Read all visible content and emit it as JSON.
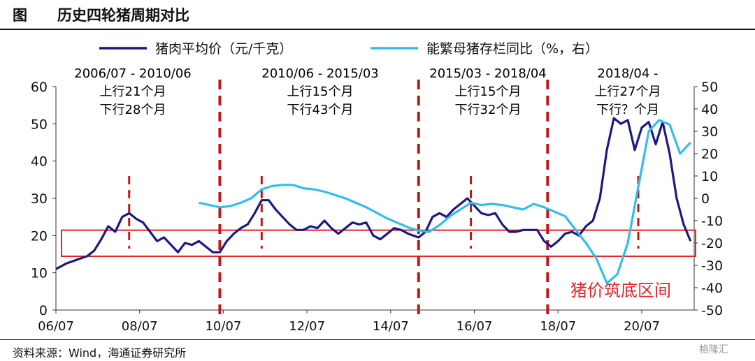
{
  "header": {
    "fig_label": "图",
    "title": "历史四轮猪周期对比"
  },
  "source": "资料来源：Wind，海通证券研究所",
  "watermark": "格隆汇",
  "chart_data": {
    "type": "line",
    "legend": [
      {
        "name": "猪肉平均价（元/千克）",
        "color": "#1a1a80"
      },
      {
        "name": "能繁母猪存栏同比（%，右）",
        "color": "#33bde8"
      }
    ],
    "x_ticks": [
      "06/07",
      "08/07",
      "10/07",
      "12/07",
      "14/07",
      "16/07",
      "18/07",
      "20/07"
    ],
    "y_left": {
      "ticks": [
        0,
        10,
        20,
        30,
        40,
        50,
        60
      ],
      "lim": [
        0,
        60
      ]
    },
    "y_right": {
      "ticks": [
        50,
        40,
        30,
        20,
        10,
        0,
        -10,
        -20,
        -30,
        -40,
        -50
      ],
      "lim": [
        -50,
        50
      ]
    },
    "cycles": [
      {
        "period": "2006/07 - 2010/06",
        "up": "上行21个月",
        "down": "下行28个月"
      },
      {
        "period": "2010/06 - 2015/03",
        "up": "上行15个月",
        "down": "下行43个月"
      },
      {
        "period": "2015/03 - 2018/04",
        "up": "上行15个月",
        "down": "下行32个月"
      },
      {
        "period": "2018/04 -",
        "up": "上行27个月",
        "down": "下行？个月"
      }
    ],
    "cycle_boundaries": [
      "2010-06",
      "2015-03",
      "2018-04"
    ],
    "peak_markers": [
      "2008-04",
      "2011-06",
      "2016-06",
      "2020-06"
    ],
    "bottom_band": {
      "label": "猪价筑底区间",
      "y_range": [
        15,
        22
      ]
    },
    "series": [
      {
        "name": "猪肉平均价（元/千克）",
        "axis": "left",
        "color": "#1a1a80",
        "points": [
          [
            "2006-07",
            11
          ],
          [
            "2006-10",
            12.5
          ],
          [
            "2007-01",
            13.5
          ],
          [
            "2007-04",
            14.5
          ],
          [
            "2007-06",
            16
          ],
          [
            "2007-08",
            19
          ],
          [
            "2007-10",
            22.5
          ],
          [
            "2007-12",
            21
          ],
          [
            "2008-02",
            25
          ],
          [
            "2008-04",
            26
          ],
          [
            "2008-06",
            24.5
          ],
          [
            "2008-08",
            23.5
          ],
          [
            "2008-10",
            21
          ],
          [
            "2008-12",
            18.5
          ],
          [
            "2009-02",
            19.5
          ],
          [
            "2009-04",
            17.5
          ],
          [
            "2009-06",
            15.5
          ],
          [
            "2009-08",
            18
          ],
          [
            "2009-10",
            17.5
          ],
          [
            "2009-12",
            18.5
          ],
          [
            "2010-02",
            17
          ],
          [
            "2010-04",
            15.5
          ],
          [
            "2010-06",
            15.5
          ],
          [
            "2010-08",
            18.5
          ],
          [
            "2010-10",
            20.5
          ],
          [
            "2010-12",
            22
          ],
          [
            "2011-02",
            23
          ],
          [
            "2011-04",
            26
          ],
          [
            "2011-06",
            29.5
          ],
          [
            "2011-08",
            29.5
          ],
          [
            "2011-10",
            27
          ],
          [
            "2011-12",
            25
          ],
          [
            "2012-02",
            23
          ],
          [
            "2012-04",
            21.5
          ],
          [
            "2012-06",
            21.5
          ],
          [
            "2012-08",
            22.5
          ],
          [
            "2012-10",
            22
          ],
          [
            "2012-12",
            24
          ],
          [
            "2013-02",
            22
          ],
          [
            "2013-04",
            20.5
          ],
          [
            "2013-06",
            22
          ],
          [
            "2013-08",
            23.5
          ],
          [
            "2013-10",
            23
          ],
          [
            "2013-12",
            23.5
          ],
          [
            "2014-02",
            20
          ],
          [
            "2014-04",
            19
          ],
          [
            "2014-06",
            20.5
          ],
          [
            "2014-08",
            22
          ],
          [
            "2014-10",
            21.5
          ],
          [
            "2014-12",
            20.5
          ],
          [
            "2015-03",
            19.5
          ],
          [
            "2015-05",
            21
          ],
          [
            "2015-07",
            25
          ],
          [
            "2015-09",
            26
          ],
          [
            "2015-11",
            25
          ],
          [
            "2016-01",
            27
          ],
          [
            "2016-03",
            28.5
          ],
          [
            "2016-05",
            30
          ],
          [
            "2016-07",
            28
          ],
          [
            "2016-09",
            26
          ],
          [
            "2016-11",
            25.5
          ],
          [
            "2017-01",
            26
          ],
          [
            "2017-03",
            23
          ],
          [
            "2017-05",
            21
          ],
          [
            "2017-07",
            21
          ],
          [
            "2017-09",
            21.5
          ],
          [
            "2017-11",
            21.5
          ],
          [
            "2018-01",
            21.5
          ],
          [
            "2018-03",
            18.5
          ],
          [
            "2018-05",
            17
          ],
          [
            "2018-07",
            18.5
          ],
          [
            "2018-09",
            20.5
          ],
          [
            "2018-11",
            21
          ],
          [
            "2019-01",
            20
          ],
          [
            "2019-03",
            22.5
          ],
          [
            "2019-05",
            24
          ],
          [
            "2019-07",
            30
          ],
          [
            "2019-09",
            43
          ],
          [
            "2019-11",
            51.5
          ],
          [
            "2020-01",
            50
          ],
          [
            "2020-03",
            51
          ],
          [
            "2020-05",
            43
          ],
          [
            "2020-07",
            49
          ],
          [
            "2020-09",
            50.5
          ],
          [
            "2020-11",
            44.5
          ],
          [
            "2021-01",
            50.5
          ],
          [
            "2021-03",
            42
          ],
          [
            "2021-05",
            30
          ],
          [
            "2021-07",
            23
          ],
          [
            "2021-09",
            18.5
          ]
        ]
      },
      {
        "name": "能繁母猪存栏同比（%，右）",
        "axis": "right",
        "color": "#33bde8",
        "points": [
          [
            "2009-12",
            -2
          ],
          [
            "2010-03",
            -3
          ],
          [
            "2010-06",
            -4
          ],
          [
            "2010-09",
            -3.5
          ],
          [
            "2010-12",
            -2
          ],
          [
            "2011-03",
            0
          ],
          [
            "2011-06",
            4
          ],
          [
            "2011-09",
            5.5
          ],
          [
            "2011-12",
            6
          ],
          [
            "2012-03",
            6
          ],
          [
            "2012-06",
            4.5
          ],
          [
            "2012-09",
            4
          ],
          [
            "2012-12",
            3
          ],
          [
            "2013-03",
            1.5
          ],
          [
            "2013-06",
            0
          ],
          [
            "2013-09",
            -2
          ],
          [
            "2013-12",
            -4
          ],
          [
            "2014-03",
            -6.5
          ],
          [
            "2014-06",
            -9
          ],
          [
            "2014-09",
            -11
          ],
          [
            "2014-12",
            -13
          ],
          [
            "2015-03",
            -14.5
          ],
          [
            "2015-06",
            -15
          ],
          [
            "2015-09",
            -12
          ],
          [
            "2015-12",
            -8
          ],
          [
            "2016-03",
            -5
          ],
          [
            "2016-06",
            -2
          ],
          [
            "2016-09",
            -3
          ],
          [
            "2016-12",
            -2.5
          ],
          [
            "2017-03",
            -3
          ],
          [
            "2017-06",
            -4
          ],
          [
            "2017-09",
            -5
          ],
          [
            "2017-12",
            -2.5
          ],
          [
            "2018-03",
            -4
          ],
          [
            "2018-06",
            -6
          ],
          [
            "2018-09",
            -8
          ],
          [
            "2018-12",
            -14
          ],
          [
            "2019-03",
            -20
          ],
          [
            "2019-06",
            -27
          ],
          [
            "2019-09",
            -38
          ],
          [
            "2019-12",
            -34
          ],
          [
            "2020-03",
            -20
          ],
          [
            "2020-06",
            5
          ],
          [
            "2020-09",
            30
          ],
          [
            "2020-12",
            35
          ],
          [
            "2021-03",
            33
          ],
          [
            "2021-06",
            20
          ],
          [
            "2021-09",
            25
          ]
        ]
      }
    ]
  }
}
